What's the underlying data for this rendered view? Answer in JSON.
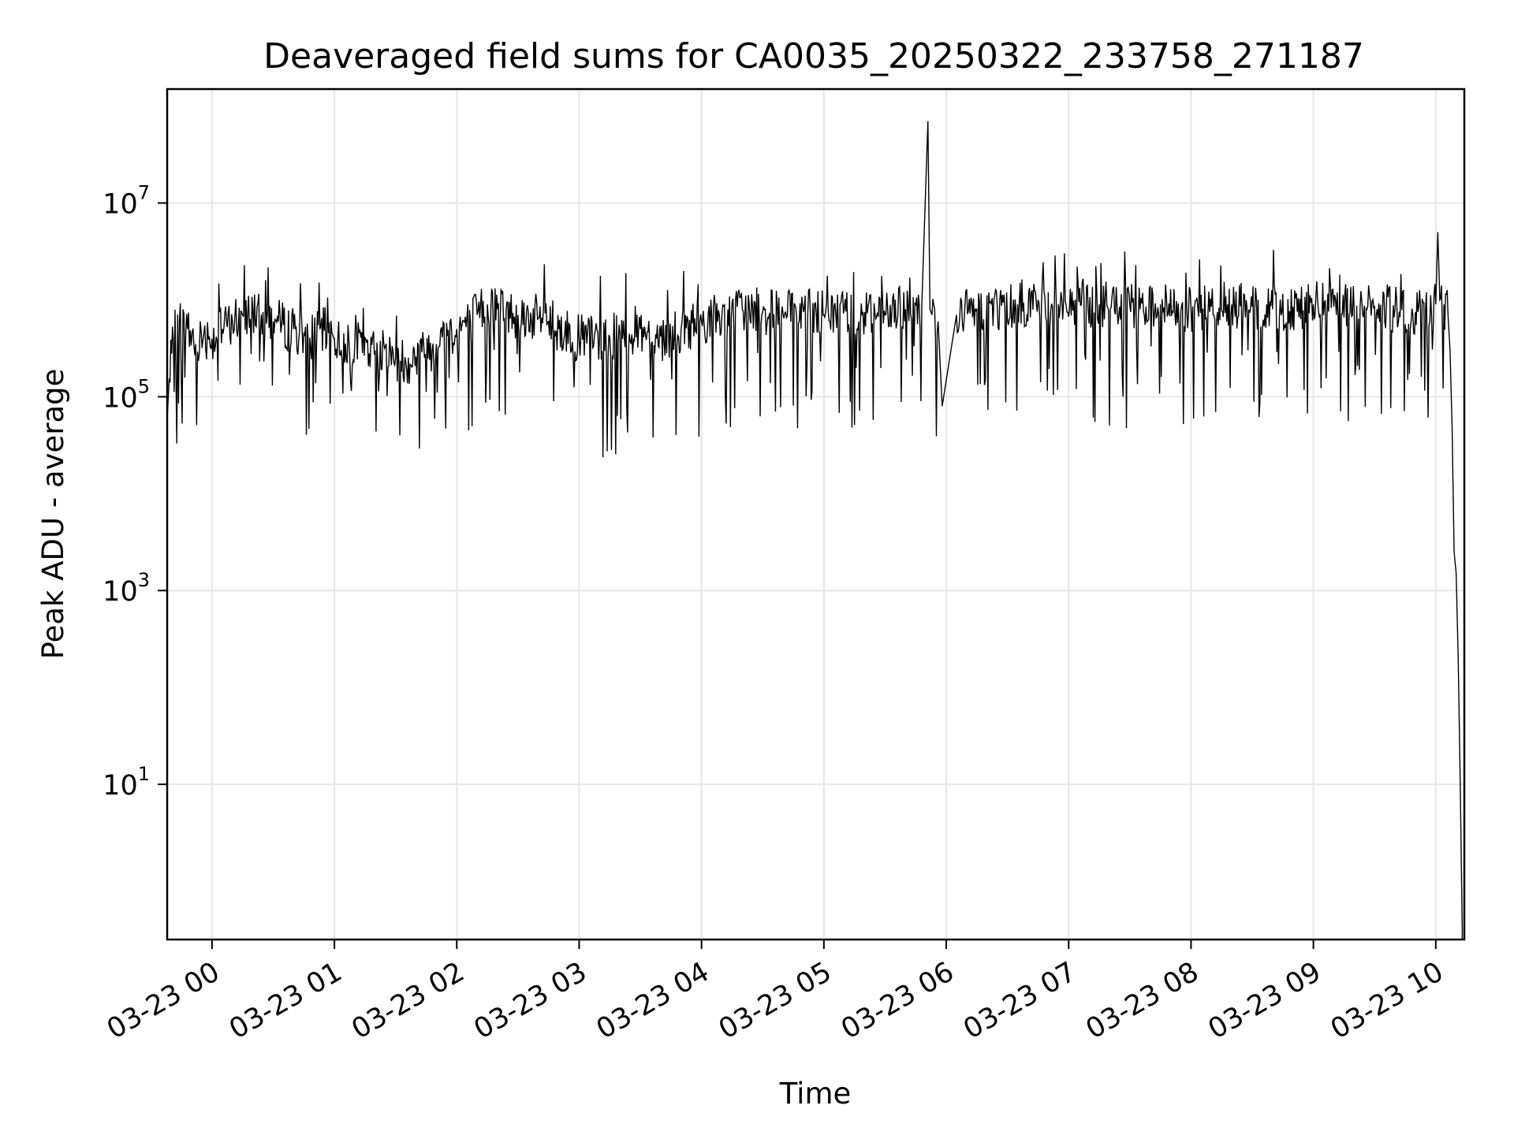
{
  "chart_data": {
    "type": "line",
    "title": "Deaveraged field sums for CA0035_20250322_233758_271187",
    "xlabel": "Time",
    "ylabel": "Peak ADU - average",
    "yscale": "log",
    "grid": true,
    "line_color": "#000000",
    "xlim": [
      "2025-03-22 23:38",
      "2025-03-23 10:14"
    ],
    "ylim": [
      0.25,
      150000000
    ],
    "x_ticks": [
      {
        "t": "2025-03-23 00:00",
        "label": "03-23 00"
      },
      {
        "t": "2025-03-23 01:00",
        "label": "03-23 01"
      },
      {
        "t": "2025-03-23 02:00",
        "label": "03-23 02"
      },
      {
        "t": "2025-03-23 03:00",
        "label": "03-23 03"
      },
      {
        "t": "2025-03-23 04:00",
        "label": "03-23 04"
      },
      {
        "t": "2025-03-23 05:00",
        "label": "03-23 05"
      },
      {
        "t": "2025-03-23 06:00",
        "label": "03-23 06"
      },
      {
        "t": "2025-03-23 07:00",
        "label": "03-23 07"
      },
      {
        "t": "2025-03-23 08:00",
        "label": "03-23 08"
      },
      {
        "t": "2025-03-23 09:00",
        "label": "03-23 09"
      },
      {
        "t": "2025-03-23 10:00",
        "label": "03-23 10"
      }
    ],
    "y_ticks": [
      {
        "value": 10,
        "base": "10",
        "exp": "1"
      },
      {
        "value": 1000,
        "base": "10",
        "exp": "3"
      },
      {
        "value": 100000,
        "base": "10",
        "exp": "5"
      },
      {
        "value": 10000000,
        "base": "10",
        "exp": "7"
      }
    ],
    "series": [
      {
        "x": [
          "2025-03-22 23:38",
          "2025-03-22 23:39",
          "2025-03-22 23:41",
          "2025-03-22 23:44",
          "2025-03-22 23:48",
          "2025-03-22 23:52",
          "2025-03-22 23:56",
          "2025-03-23 00:00",
          "2025-03-23 00:05",
          "2025-03-23 00:10",
          "2025-03-23 00:15",
          "2025-03-23 00:20",
          "2025-03-23 00:25",
          "2025-03-23 00:30",
          "2025-03-23 00:35",
          "2025-03-23 00:40",
          "2025-03-23 00:45",
          "2025-03-23 00:50",
          "2025-03-23 00:55",
          "2025-03-23 01:00",
          "2025-03-23 01:10",
          "2025-03-23 01:20",
          "2025-03-23 01:30",
          "2025-03-23 01:35",
          "2025-03-23 01:40",
          "2025-03-23 01:50",
          "2025-03-23 02:00",
          "2025-03-23 02:10",
          "2025-03-23 02:15",
          "2025-03-23 02:20",
          "2025-03-23 02:30",
          "2025-03-23 02:40",
          "2025-03-23 02:45",
          "2025-03-23 02:50",
          "2025-03-23 03:00",
          "2025-03-23 03:10",
          "2025-03-23 03:20",
          "2025-03-23 03:30",
          "2025-03-23 03:40",
          "2025-03-23 03:45",
          "2025-03-23 03:50",
          "2025-03-23 04:00",
          "2025-03-23 04:10",
          "2025-03-23 04:20",
          "2025-03-23 04:30",
          "2025-03-23 04:40",
          "2025-03-23 04:50",
          "2025-03-23 05:00",
          "2025-03-23 05:10",
          "2025-03-23 05:20",
          "2025-03-23 05:30",
          "2025-03-23 05:40",
          "2025-03-23 05:48",
          "2025-03-23 05:51",
          "2025-03-23 05:52",
          "2025-03-23 05:53",
          "2025-03-23 05:56",
          "2025-03-23 05:58",
          "2025-03-23 06:05",
          "2025-03-23 06:15",
          "2025-03-23 06:25",
          "2025-03-23 06:35",
          "2025-03-23 06:45",
          "2025-03-23 06:55",
          "2025-03-23 07:05",
          "2025-03-23 07:15",
          "2025-03-23 07:25",
          "2025-03-23 07:35",
          "2025-03-23 07:45",
          "2025-03-23 07:55",
          "2025-03-23 08:00",
          "2025-03-23 08:10",
          "2025-03-23 08:20",
          "2025-03-23 08:30",
          "2025-03-23 08:40",
          "2025-03-23 08:50",
          "2025-03-23 09:00",
          "2025-03-23 09:10",
          "2025-03-23 09:20",
          "2025-03-23 09:30",
          "2025-03-23 09:40",
          "2025-03-23 09:50",
          "2025-03-23 09:55",
          "2025-03-23 10:00",
          "2025-03-23 10:01",
          "2025-03-23 10:02",
          "2025-03-23 10:04",
          "2025-03-23 10:06",
          "2025-03-23 10:07",
          "2025-03-23 10:08",
          "2025-03-23 10:09",
          "2025-03-23 10:10",
          "2025-03-23 10:11",
          "2025-03-23 10:12",
          "2025-03-23 10:13"
        ],
        "y": [
          60000,
          150000,
          400000,
          600000,
          500000,
          350000,
          450000,
          400000,
          500000,
          600000,
          700000,
          800000,
          750000,
          600000,
          550000,
          500000,
          450000,
          420000,
          480000,
          400000,
          350000,
          300000,
          250000,
          230000,
          260000,
          350000,
          500000,
          700000,
          900000,
          800000,
          700000,
          650000,
          600000,
          500000,
          400000,
          400000,
          450000,
          500000,
          420000,
          400000,
          500000,
          600000,
          700000,
          800000,
          750000,
          700000,
          750000,
          700000,
          800000,
          750000,
          700000,
          800000,
          900000,
          70000000,
          800000,
          700000,
          600000,
          80000,
          700000,
          800000,
          850000,
          900000,
          1000000,
          900000,
          950000,
          900000,
          850000,
          800000,
          900000,
          750000,
          800000,
          850000,
          900000,
          850000,
          800000,
          850000,
          900000,
          850000,
          800000,
          850000,
          800000,
          750000,
          800000,
          900000,
          5000000,
          1000000,
          900000,
          700000,
          300000,
          50000,
          2500,
          1500,
          200,
          10,
          0.3
        ]
      }
    ]
  }
}
